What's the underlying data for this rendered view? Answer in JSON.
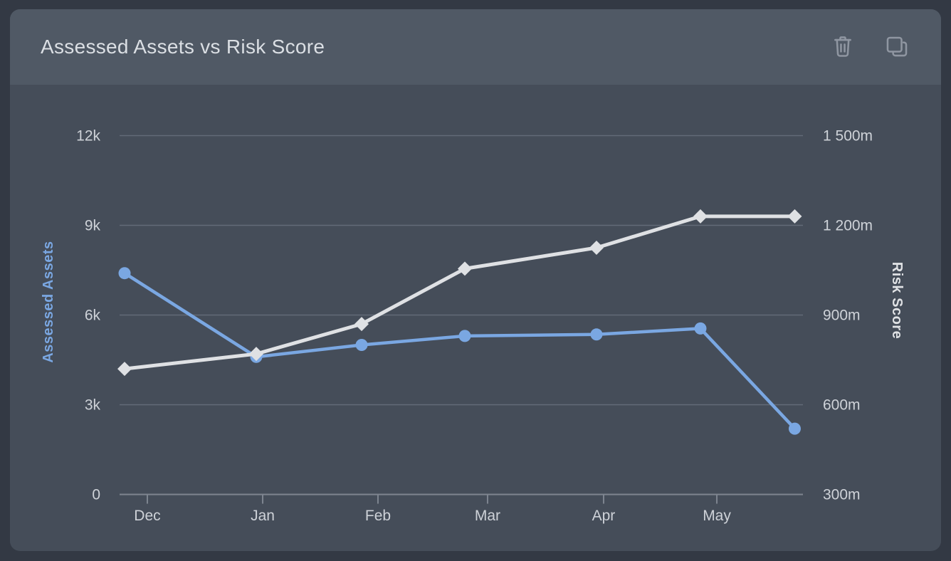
{
  "card": {
    "title": "Assessed Assets vs Risk Score",
    "actions": {
      "delete_tooltip": "Delete",
      "duplicate_tooltip": "Duplicate"
    }
  },
  "colors": {
    "page_bg": "#333944",
    "card_bg": "#454d59",
    "header_bg": "#505965",
    "title_text": "#dbdfe4",
    "icon": "#8f96a1",
    "grid_line": "#636b78",
    "axis_line": "#7e8590",
    "tick_text": "#ced2d8",
    "assessed_assets_accent": "#7aa7e2",
    "risk_score_accent": "#dfe1e4"
  },
  "chart_data": {
    "type": "line",
    "title": "Assessed Assets vs Risk Score",
    "grid": true,
    "legend": "none",
    "x_axis": {
      "tick_labels": [
        "Dec",
        "Jan",
        "Feb",
        "Mar",
        "Apr",
        "May"
      ],
      "tick_positions": [
        0.0406,
        0.2094,
        0.3781,
        0.5385,
        0.7083,
        0.874
      ]
    },
    "left_axis": {
      "title": "Assessed Assets",
      "tick_labels": [
        "0",
        "3k",
        "6k",
        "9k",
        "12k"
      ],
      "tick_values": [
        0,
        3000,
        6000,
        9000,
        12000
      ],
      "range": [
        0,
        12000
      ]
    },
    "right_axis": {
      "title": "Risk Score",
      "tick_labels": [
        "300m",
        "600m",
        "900m",
        "1 200m",
        "1 500m"
      ],
      "tick_values": [
        300,
        600,
        900,
        1200,
        1500
      ],
      "range": [
        300,
        1500
      ]
    },
    "point_positions": [
      0.0073,
      0.2,
      0.3542,
      0.5052,
      0.6979,
      0.85,
      0.988
    ],
    "series": [
      {
        "name": "Assessed Assets",
        "axis": "left",
        "marker": "circle",
        "color": "#7aa7e2",
        "line_width": 4.5,
        "values": [
          7400,
          4600,
          5000,
          5300,
          5350,
          5550,
          2200
        ]
      },
      {
        "name": "Risk Score",
        "axis": "right",
        "marker": "diamond",
        "color": "#dfe1e4",
        "line_width": 5,
        "values": [
          720,
          770,
          870,
          1055,
          1125,
          1230,
          1230
        ]
      }
    ]
  }
}
